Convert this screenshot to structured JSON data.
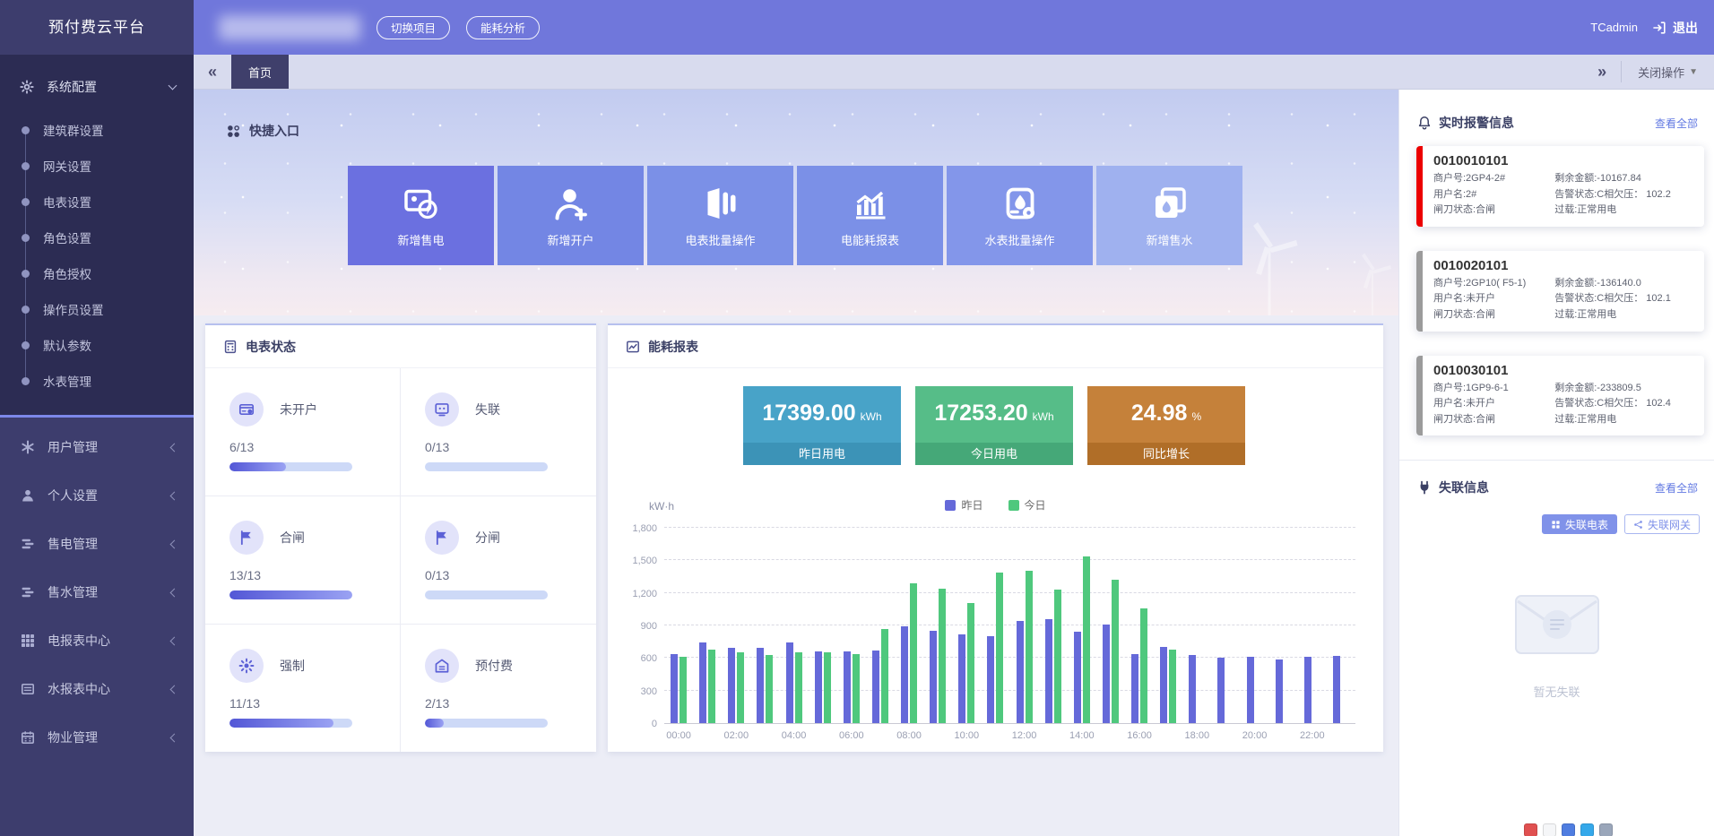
{
  "app": {
    "title": "预付费云平台"
  },
  "header": {
    "switch_project": "切换项目",
    "energy_analysis": "能耗分析",
    "username": "TCadmin",
    "logout": "退出"
  },
  "tabbar": {
    "active_tab": "首页",
    "close_ops": "关闭操作"
  },
  "sidebar": {
    "config_group": {
      "label": "系统配置",
      "icon": "gear",
      "items": [
        "建筑群设置",
        "网关设置",
        "电表设置",
        "角色设置",
        "角色授权",
        "操作员设置",
        "默认参数",
        "水表管理"
      ]
    },
    "menu": [
      {
        "label": "用户管理",
        "icon": "asterisk"
      },
      {
        "label": "个人设置",
        "icon": "user"
      },
      {
        "label": "售电管理",
        "icon": "list"
      },
      {
        "label": "售水管理",
        "icon": "list"
      },
      {
        "label": "电报表中心",
        "icon": "grid9"
      },
      {
        "label": "水报表中心",
        "icon": "listbox"
      },
      {
        "label": "物业管理",
        "icon": "calendar"
      }
    ]
  },
  "icons": {
    "quick_entry": "dots4",
    "meter_status": "meterbox",
    "energy_report": "chartline",
    "alarms": "bell",
    "offline": "plug",
    "logout": "logout",
    "offline_meter_btn": "gridmini",
    "offline_gateway_btn": "nodes"
  },
  "quick_entry": {
    "title": "快捷入口",
    "tiles": [
      {
        "label": "新增售电",
        "icon": "cardbolt",
        "color": "#6b70e0"
      },
      {
        "label": "新增开户",
        "icon": "userplus",
        "color": "#7386e4"
      },
      {
        "label": "电表批量操作",
        "icon": "pages",
        "color": "#7b90e7"
      },
      {
        "label": "电能耗报表",
        "icon": "chartbars",
        "color": "#7b90e7"
      },
      {
        "label": "水表批量操作",
        "icon": "watergear",
        "color": "#8396ea"
      },
      {
        "label": "新增售水",
        "icon": "watercopy",
        "color": "#9fb1ef"
      }
    ]
  },
  "meter_status": {
    "title": "电表状态",
    "items": [
      {
        "label": "未开户",
        "icon": "cardbadge",
        "count": "6/13",
        "pct": 46
      },
      {
        "label": "失联",
        "icon": "screen",
        "count": "0/13",
        "pct": 0
      },
      {
        "label": "合闸",
        "icon": "flag",
        "count": "13/13",
        "pct": 100
      },
      {
        "label": "分闸",
        "icon": "flag",
        "count": "0/13",
        "pct": 0
      },
      {
        "label": "强制",
        "icon": "gearkey",
        "count": "11/13",
        "pct": 85
      },
      {
        "label": "预付费",
        "icon": "house",
        "count": "2/13",
        "pct": 15
      }
    ]
  },
  "energy_report": {
    "title": "能耗报表",
    "stats": [
      {
        "value": "17399.00",
        "unit": "kWh",
        "label": "昨日用电",
        "bg": "#48a3c8",
        "footer_bg": "#3c93b7"
      },
      {
        "value": "17253.20",
        "unit": "kWh",
        "label": "今日用电",
        "bg": "#56bd88",
        "footer_bg": "#45a878"
      },
      {
        "value": "24.98",
        "unit": "%",
        "label": "同比增长",
        "bg": "#c5813a",
        "footer_bg": "#b06e28"
      }
    ]
  },
  "chart_data": {
    "type": "bar",
    "title": "能耗报表",
    "unit": "kW·h",
    "ylim": [
      0,
      1800
    ],
    "yticks": [
      "0",
      "300",
      "600",
      "900",
      "1,200",
      "1,500",
      "1,800"
    ],
    "grid": "dashed-horizontal",
    "legend_position": "top-center",
    "x_labels": [
      "00:00",
      "02:00",
      "04:00",
      "06:00",
      "08:00",
      "10:00",
      "12:00",
      "14:00",
      "16:00",
      "18:00",
      "20:00",
      "22:00"
    ],
    "hours": 24,
    "series": [
      {
        "name": "昨日",
        "color": "#6569d9",
        "values": [
          640,
          740,
          690,
          690,
          740,
          660,
          660,
          670,
          890,
          850,
          820,
          800,
          940,
          960,
          840,
          910,
          640,
          700,
          630,
          600,
          610,
          590,
          610,
          620
        ]
      },
      {
        "name": "今日",
        "color": "#4fc87d",
        "values": [
          610,
          680,
          650,
          630,
          650,
          650,
          640,
          870,
          1290,
          1240,
          1110,
          1390,
          1400,
          1230,
          1540,
          1320,
          1060,
          680,
          0,
          0,
          0,
          0,
          0,
          0
        ]
      }
    ]
  },
  "alarms": {
    "title": "实时报警信息",
    "view_all": "查看全部",
    "cards": [
      {
        "id": "0010010101",
        "accent": "#ec0000",
        "rows": [
          [
            "商户号:2GP4-2#",
            "剩余金额:-10167.84"
          ],
          [
            "用户名:2#",
            "告警状态:C相欠压： 102.2"
          ],
          [
            "闸刀状态:合闸",
            "过载:正常用电"
          ]
        ]
      },
      {
        "id": "0010020101",
        "accent": "#9b9b9b",
        "rows": [
          [
            "商户号:2GP10( F5-1)",
            "剩余金额:-136140.0"
          ],
          [
            "用户名:未开户",
            "告警状态:C相欠压： 102.1"
          ],
          [
            "闸刀状态:合闸",
            "过载:正常用电"
          ]
        ]
      },
      {
        "id": "0010030101",
        "accent": "#9b9b9b",
        "rows": [
          [
            "商户号:1GP9-6-1",
            "剩余金额:-233809.5"
          ],
          [
            "用户名:未开户",
            "告警状态:C相欠压： 102.4"
          ],
          [
            "闸刀状态:合闸",
            "过载:正常用电"
          ]
        ]
      }
    ]
  },
  "offline": {
    "title": "失联信息",
    "view_all": "查看全部",
    "btn_meter": "失联电表",
    "btn_gateway": "失联网关",
    "empty": "暂无失联"
  },
  "floating_toolbar": {
    "icon_colors": [
      "#e05050",
      "#f5f6f8",
      "#4f7de0",
      "#35a8ea",
      "#9aa6ba"
    ]
  }
}
